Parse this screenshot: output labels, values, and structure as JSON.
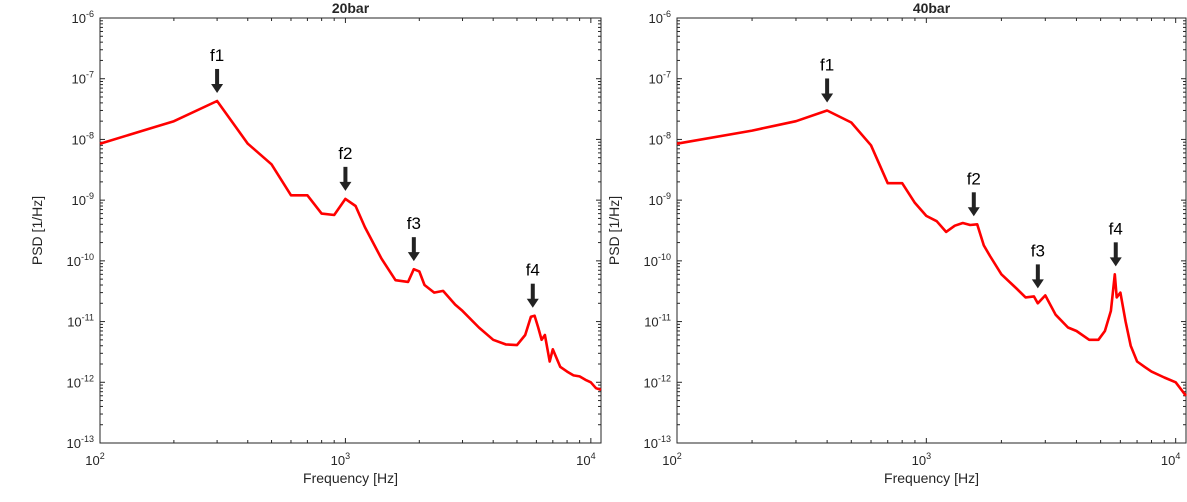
{
  "chart_data": [
    {
      "type": "line",
      "title": "20bar",
      "xlabel": "Frequency [Hz]",
      "ylabel": "PSD [1/Hz]",
      "xscale": "log",
      "yscale": "log",
      "xlim": [
        100,
        11000
      ],
      "ylim": [
        1e-13,
        1e-06
      ],
      "xticks": [
        {
          "base": "10",
          "exp": "2",
          "value": 100
        },
        {
          "base": "10",
          "exp": "3",
          "value": 1000
        },
        {
          "base": "10",
          "exp": "4",
          "value": 10000
        }
      ],
      "yticks": [
        {
          "base": "10",
          "exp": "-6",
          "value": 1e-06
        },
        {
          "base": "10",
          "exp": "-7",
          "value": 1e-07
        },
        {
          "base": "10",
          "exp": "-8",
          "value": 1e-08
        },
        {
          "base": "10",
          "exp": "-9",
          "value": 1e-09
        },
        {
          "base": "10",
          "exp": "-10",
          "value": 1e-10
        },
        {
          "base": "10",
          "exp": "-11",
          "value": 1e-11
        },
        {
          "base": "10",
          "exp": "-12",
          "value": 1e-12
        },
        {
          "base": "10",
          "exp": "-13",
          "value": 1e-13
        }
      ],
      "grid": false,
      "series_color": "#ff0000",
      "series": [
        {
          "x": [
            100,
            200,
            300,
            400,
            500,
            600,
            700,
            800,
            900,
            1000,
            1100,
            1200,
            1400,
            1600,
            1800,
            1900,
            2000,
            2100,
            2300,
            2500,
            2800,
            3000,
            3500,
            4000,
            4500,
            5000,
            5400,
            5700,
            5900,
            6100,
            6300,
            6500,
            6800,
            7000,
            7500,
            8000,
            8500,
            9000,
            9500,
            10000,
            10500,
            11000
          ],
          "y": [
            8.5e-09,
            2e-08,
            4.3e-08,
            8.5e-09,
            3.9e-09,
            1.2e-09,
            1.2e-09,
            6e-10,
            5.7e-10,
            1.05e-09,
            8e-10,
            3.6e-10,
            1.1e-10,
            4.8e-11,
            4.5e-11,
            7.3e-11,
            6.7e-11,
            4e-11,
            3e-11,
            3.2e-11,
            1.9e-11,
            1.5e-11,
            8e-12,
            5e-12,
            4.2e-12,
            4.1e-12,
            6e-12,
            1.2e-11,
            1.25e-11,
            8e-12,
            5e-12,
            6e-12,
            2.2e-12,
            3.5e-12,
            1.8e-12,
            1.5e-12,
            1.3e-12,
            1.25e-12,
            1.1e-12,
            1e-12,
            8e-13,
            7.5e-13
          ]
        }
      ],
      "annotations": [
        {
          "text": "f1",
          "x": 300,
          "y": 4.3e-08
        },
        {
          "text": "f2",
          "x": 1000,
          "y": 1.05e-09
        },
        {
          "text": "f3",
          "x": 1900,
          "y": 7.3e-11
        },
        {
          "text": "f4",
          "x": 5800,
          "y": 1.25e-11
        }
      ]
    },
    {
      "type": "line",
      "title": "40bar",
      "xlabel": "Frequency [Hz]",
      "ylabel": "PSD [1/Hz]",
      "xscale": "log",
      "yscale": "log",
      "xlim": [
        100,
        11000
      ],
      "ylim": [
        1e-13,
        1e-06
      ],
      "xticks": [
        {
          "base": "10",
          "exp": "2",
          "value": 100
        },
        {
          "base": "10",
          "exp": "3",
          "value": 1000
        },
        {
          "base": "10",
          "exp": "4",
          "value": 10000
        }
      ],
      "yticks": [
        {
          "base": "10",
          "exp": "-6",
          "value": 1e-06
        },
        {
          "base": "10",
          "exp": "-7",
          "value": 1e-07
        },
        {
          "base": "10",
          "exp": "-8",
          "value": 1e-08
        },
        {
          "base": "10",
          "exp": "-9",
          "value": 1e-09
        },
        {
          "base": "10",
          "exp": "-10",
          "value": 1e-10
        },
        {
          "base": "10",
          "exp": "-11",
          "value": 1e-11
        },
        {
          "base": "10",
          "exp": "-12",
          "value": 1e-12
        },
        {
          "base": "10",
          "exp": "-13",
          "value": 1e-13
        }
      ],
      "grid": false,
      "series_color": "#ff0000",
      "series": [
        {
          "x": [
            100,
            200,
            300,
            400,
            500,
            600,
            700,
            800,
            900,
            1000,
            1100,
            1200,
            1300,
            1400,
            1500,
            1600,
            1700,
            1800,
            2000,
            2300,
            2500,
            2700,
            2800,
            3000,
            3300,
            3700,
            4000,
            4500,
            4900,
            5200,
            5500,
            5700,
            5800,
            6000,
            6300,
            6600,
            7000,
            7500,
            8000,
            9000,
            10000,
            11000
          ],
          "y": [
            8.5e-09,
            1.4e-08,
            2e-08,
            3e-08,
            1.9e-08,
            8e-09,
            1.9e-09,
            1.9e-09,
            9e-10,
            5.5e-10,
            4.5e-10,
            3e-10,
            3.8e-10,
            4.2e-10,
            3.9e-10,
            4e-10,
            1.8e-10,
            1.2e-10,
            6e-11,
            3.5e-11,
            2.5e-11,
            2.6e-11,
            2e-11,
            2.7e-11,
            1.3e-11,
            8e-12,
            7e-12,
            5e-12,
            5e-12,
            7e-12,
            1.5e-11,
            6e-11,
            2.5e-11,
            3e-11,
            1e-11,
            4e-12,
            2.2e-12,
            1.8e-12,
            1.5e-12,
            1.2e-12,
            1e-12,
            6e-13
          ]
        }
      ],
      "annotations": [
        {
          "text": "f1",
          "x": 400,
          "y": 3e-08
        },
        {
          "text": "f2",
          "x": 1550,
          "y": 4e-10
        },
        {
          "text": "f3",
          "x": 2800,
          "y": 2.6e-11
        },
        {
          "text": "f4",
          "x": 5750,
          "y": 6e-11
        }
      ]
    }
  ]
}
